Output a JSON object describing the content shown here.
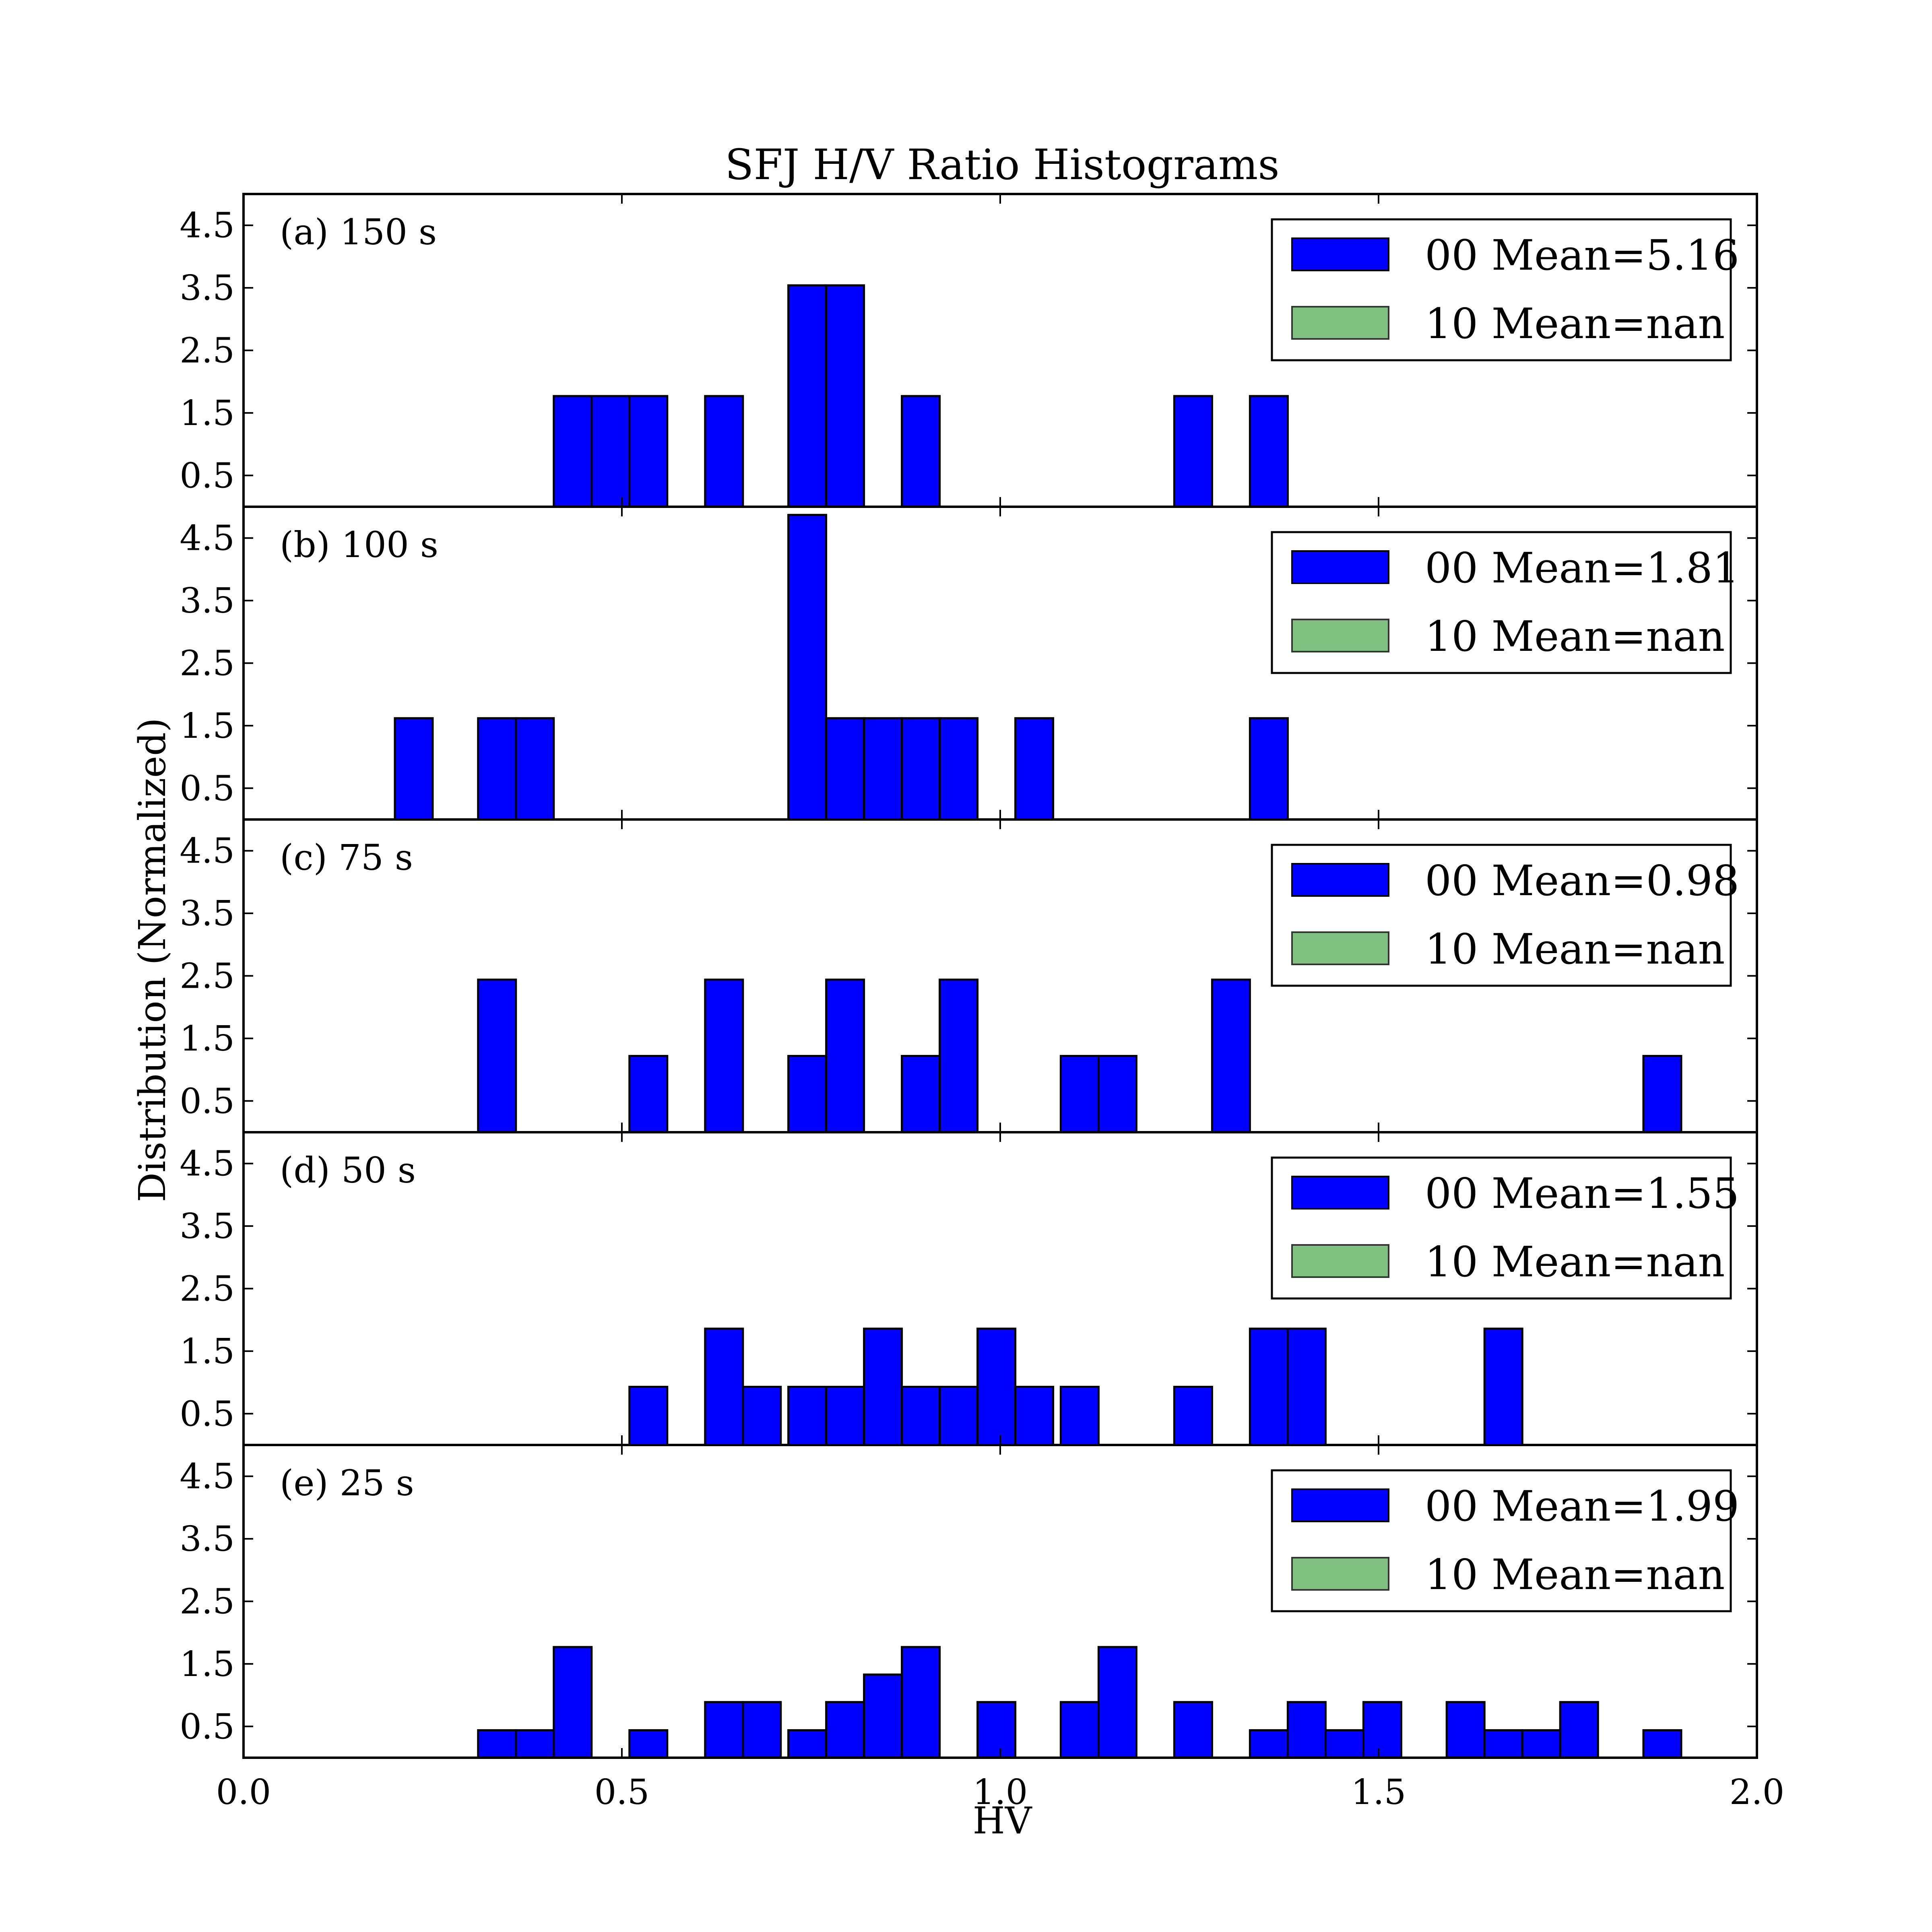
{
  "chart_data": {
    "type": "bar",
    "title": "SFJ H/V Ratio Histograms",
    "xlabel": "HV",
    "ylabel": "Distribution (Normalized)",
    "xlim": [
      0.0,
      2.0
    ],
    "ylim": [
      0,
      5
    ],
    "x_ticks": [
      "0.0",
      "0.5",
      "1.0",
      "1.5",
      "2.0"
    ],
    "y_ticks": [
      "0.5",
      "1.5",
      "2.5",
      "3.5",
      "4.5"
    ],
    "bin_width": 0.05,
    "series_colors": {
      "00": "#0000ff",
      "10": "#80c080"
    },
    "panels": [
      {
        "label": "(a) 150 s",
        "legend": [
          "00 Mean=5.16",
          "10 Mean=nan"
        ],
        "bins": [
          [
            0.41,
            1.77
          ],
          [
            0.46,
            1.77
          ],
          [
            0.51,
            1.77
          ],
          [
            0.61,
            1.77
          ],
          [
            0.72,
            3.54
          ],
          [
            0.77,
            3.54
          ],
          [
            0.87,
            1.77
          ],
          [
            1.23,
            1.77
          ],
          [
            1.33,
            1.77
          ]
        ]
      },
      {
        "label": "(b) 100 s",
        "legend": [
          "00 Mean=1.81",
          "10 Mean=nan"
        ],
        "bins": [
          [
            0.2,
            1.62
          ],
          [
            0.31,
            1.62
          ],
          [
            0.36,
            1.62
          ],
          [
            0.72,
            4.87
          ],
          [
            0.77,
            1.62
          ],
          [
            0.82,
            1.62
          ],
          [
            0.87,
            1.62
          ],
          [
            0.92,
            1.62
          ],
          [
            1.02,
            1.62
          ],
          [
            1.33,
            1.62
          ]
        ]
      },
      {
        "label": "(c) 75 s",
        "legend": [
          "00 Mean=0.98",
          "10 Mean=nan"
        ],
        "bins": [
          [
            0.31,
            2.44
          ],
          [
            0.51,
            1.22
          ],
          [
            0.61,
            2.44
          ],
          [
            0.72,
            1.22
          ],
          [
            0.77,
            2.44
          ],
          [
            0.87,
            1.22
          ],
          [
            0.92,
            2.44
          ],
          [
            1.08,
            1.22
          ],
          [
            1.13,
            1.22
          ],
          [
            1.28,
            2.44
          ],
          [
            1.85,
            1.22
          ]
        ]
      },
      {
        "label": "(d) 50 s",
        "legend": [
          "00 Mean=1.55",
          "10 Mean=nan"
        ],
        "bins": [
          [
            0.51,
            0.93
          ],
          [
            0.61,
            1.86
          ],
          [
            0.66,
            0.93
          ],
          [
            0.72,
            0.93
          ],
          [
            0.77,
            0.93
          ],
          [
            0.82,
            1.86
          ],
          [
            0.87,
            0.93
          ],
          [
            0.92,
            0.93
          ],
          [
            0.97,
            1.86
          ],
          [
            1.02,
            0.93
          ],
          [
            1.08,
            0.93
          ],
          [
            1.23,
            0.93
          ],
          [
            1.33,
            1.86
          ],
          [
            1.38,
            1.86
          ],
          [
            1.64,
            1.86
          ]
        ]
      },
      {
        "label": "(e) 25 s",
        "legend": [
          "00 Mean=1.99",
          "10 Mean=nan"
        ],
        "bins": [
          [
            0.31,
            0.44
          ],
          [
            0.36,
            0.44
          ],
          [
            0.41,
            1.77
          ],
          [
            0.51,
            0.44
          ],
          [
            0.61,
            0.89
          ],
          [
            0.66,
            0.89
          ],
          [
            0.72,
            0.44
          ],
          [
            0.77,
            0.89
          ],
          [
            0.82,
            1.33
          ],
          [
            0.87,
            1.77
          ],
          [
            0.97,
            0.89
          ],
          [
            1.08,
            0.89
          ],
          [
            1.13,
            1.77
          ],
          [
            1.23,
            0.89
          ],
          [
            1.33,
            0.44
          ],
          [
            1.38,
            0.89
          ],
          [
            1.43,
            0.44
          ],
          [
            1.48,
            0.89
          ],
          [
            1.59,
            0.89
          ],
          [
            1.64,
            0.44
          ],
          [
            1.69,
            0.44
          ],
          [
            1.74,
            0.89
          ],
          [
            1.85,
            0.44
          ]
        ]
      }
    ]
  }
}
